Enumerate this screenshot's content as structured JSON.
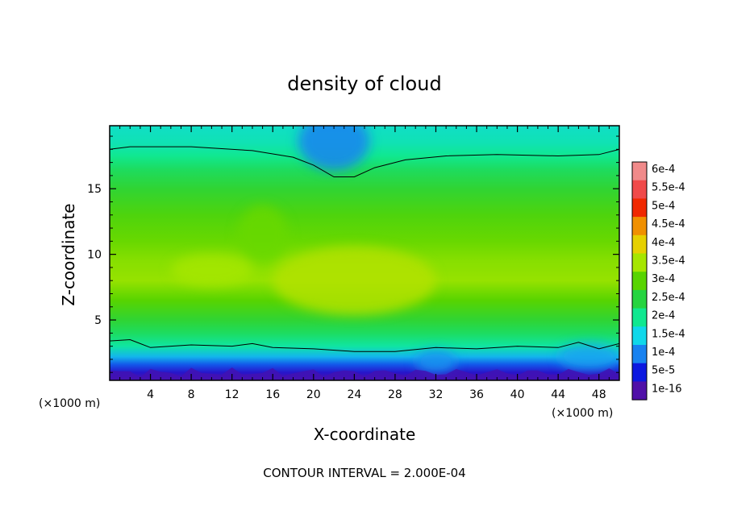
{
  "chart_data": {
    "type": "heatmap",
    "title": "density of cloud",
    "xlabel": "X-coordinate",
    "ylabel": "Z-coordinate",
    "x_unit": "(×1000 m)",
    "z_unit": "(×1000 m)",
    "xlim": [
      0,
      50
    ],
    "ylim": [
      0.4,
      19.8
    ],
    "x_ticks": [
      4,
      8,
      12,
      16,
      20,
      24,
      28,
      32,
      36,
      40,
      44,
      48
    ],
    "y_ticks": [
      5,
      10,
      15
    ],
    "colorbar": {
      "labels": [
        "6e-4",
        "5.5e-4",
        "5e-4",
        "4.5e-4",
        "4e-4",
        "3.5e-4",
        "3e-4",
        "2.5e-4",
        "2e-4",
        "1.5e-4",
        "1e-4",
        "5e-5",
        "1e-16"
      ],
      "colors": [
        "#f08a8a",
        "#f04a4a",
        "#f02800",
        "#f09000",
        "#e6d000",
        "#a6e600",
        "#58d400",
        "#26d440",
        "#10e890",
        "#10d8ea",
        "#1882f0",
        "#0c18e0",
        "#5010a8"
      ]
    },
    "contour_interval": "CONTOUR INTERVAL = 2.000E-04",
    "z_profile": [
      {
        "z": 0.4,
        "value": 0.0
      },
      {
        "z": 1.0,
        "value": 3e-05
      },
      {
        "z": 1.6,
        "value": 8e-05
      },
      {
        "z": 2.2,
        "value": 0.00013
      },
      {
        "z": 3.0,
        "value": 0.00019
      },
      {
        "z": 4.0,
        "value": 0.00023
      },
      {
        "z": 5.0,
        "value": 0.00026
      },
      {
        "z": 6.5,
        "value": 0.0003
      },
      {
        "z": 8.0,
        "value": 0.00034
      },
      {
        "z": 9.5,
        "value": 0.00033
      },
      {
        "z": 11.0,
        "value": 0.00031
      },
      {
        "z": 13.0,
        "value": 0.00029
      },
      {
        "z": 15.0,
        "value": 0.00026
      },
      {
        "z": 16.5,
        "value": 0.00023
      },
      {
        "z": 17.5,
        "value": 0.0002
      },
      {
        "z": 18.5,
        "value": 0.00018
      },
      {
        "z": 19.8,
        "value": 0.00017
      }
    ],
    "upper_contour_2e-4": [
      {
        "x": 0,
        "z": 18.0
      },
      {
        "x": 2,
        "z": 18.2
      },
      {
        "x": 8,
        "z": 18.2
      },
      {
        "x": 14,
        "z": 17.9
      },
      {
        "x": 18,
        "z": 17.4
      },
      {
        "x": 20,
        "z": 16.8
      },
      {
        "x": 22,
        "z": 15.9
      },
      {
        "x": 24,
        "z": 15.9
      },
      {
        "x": 26,
        "z": 16.6
      },
      {
        "x": 29,
        "z": 17.2
      },
      {
        "x": 33,
        "z": 17.5
      },
      {
        "x": 38,
        "z": 17.6
      },
      {
        "x": 44,
        "z": 17.5
      },
      {
        "x": 48,
        "z": 17.6
      },
      {
        "x": 50,
        "z": 18.0
      }
    ],
    "lower_contour_2e-4": [
      {
        "x": 0,
        "z": 3.4
      },
      {
        "x": 2,
        "z": 3.5
      },
      {
        "x": 4,
        "z": 2.9
      },
      {
        "x": 6,
        "z": 3.0
      },
      {
        "x": 8,
        "z": 3.1
      },
      {
        "x": 12,
        "z": 3.0
      },
      {
        "x": 14,
        "z": 3.2
      },
      {
        "x": 16,
        "z": 2.9
      },
      {
        "x": 20,
        "z": 2.8
      },
      {
        "x": 24,
        "z": 2.6
      },
      {
        "x": 28,
        "z": 2.6
      },
      {
        "x": 32,
        "z": 2.9
      },
      {
        "x": 36,
        "z": 2.8
      },
      {
        "x": 40,
        "z": 3.0
      },
      {
        "x": 44,
        "z": 2.9
      },
      {
        "x": 46,
        "z": 3.3
      },
      {
        "x": 48,
        "z": 2.8
      },
      {
        "x": 50,
        "z": 3.2
      }
    ],
    "features": [
      {
        "x": 22,
        "z": 18.6,
        "value": 0.0001,
        "rx": 3.5,
        "rz": 2.2
      },
      {
        "x": 24,
        "z": 8.0,
        "value": 0.00036,
        "rx": 8,
        "rz": 2.6
      },
      {
        "x": 10,
        "z": 8.8,
        "value": 0.00035,
        "rx": 4,
        "rz": 1.2
      },
      {
        "x": 15,
        "z": 11.5,
        "value": 0.00031,
        "rx": 2.5,
        "rz": 2.2
      },
      {
        "x": 32,
        "z": 1.8,
        "value": 0.00011,
        "rx": 2,
        "rz": 0.9
      },
      {
        "x": 47,
        "z": 2.2,
        "value": 0.00012,
        "rx": 3,
        "rz": 1.0
      }
    ]
  }
}
